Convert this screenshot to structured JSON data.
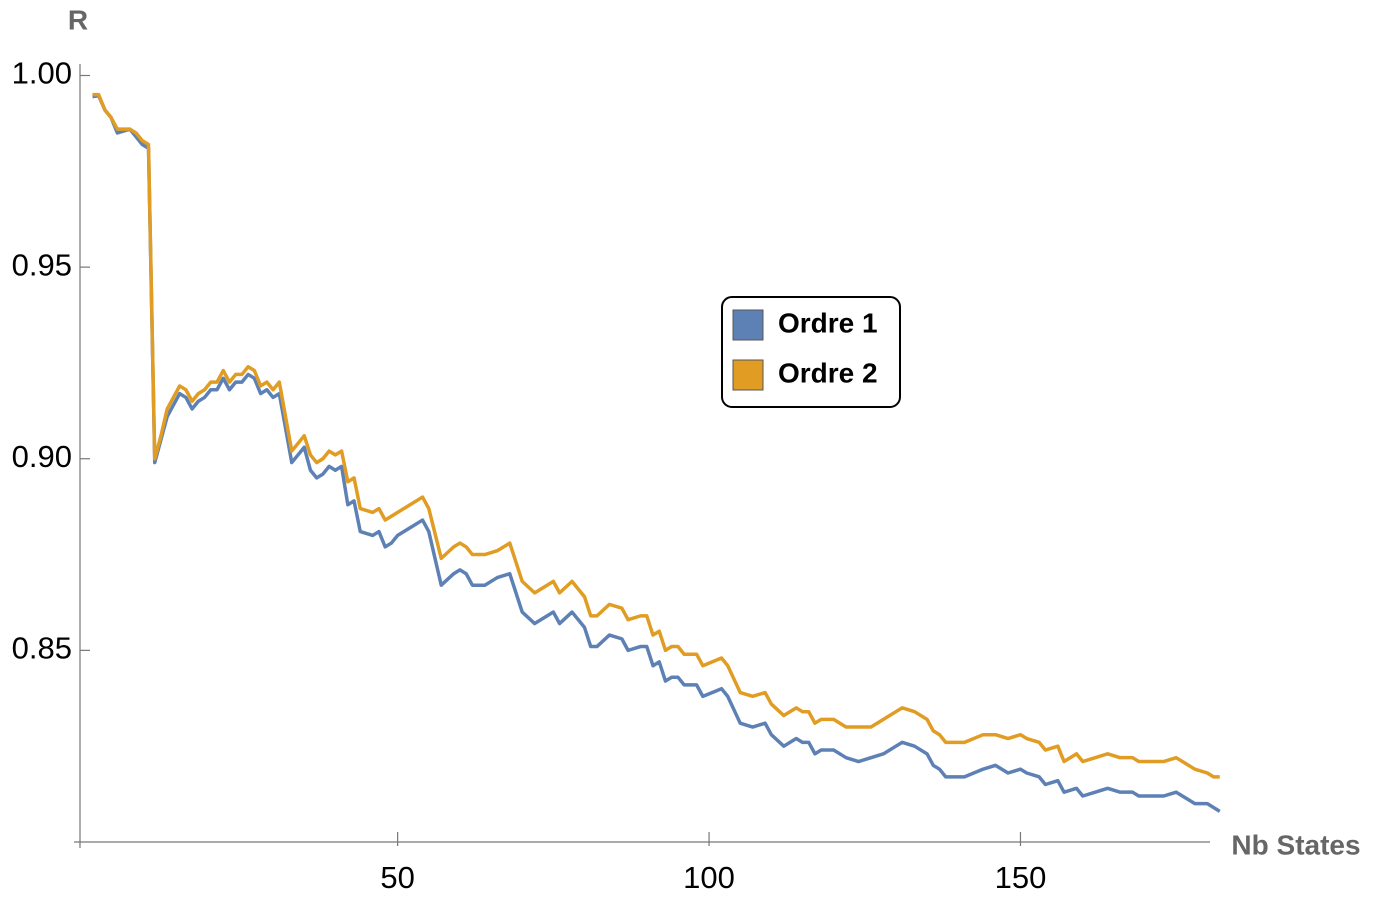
{
  "chart_data": {
    "type": "line",
    "x_label": "Nb States",
    "y_label": "R",
    "x": [
      1,
      2,
      3,
      4,
      5,
      6,
      7,
      8,
      9,
      10,
      11,
      12,
      13,
      15,
      16,
      17,
      18,
      19,
      20,
      21,
      22,
      23,
      24,
      25,
      26,
      27,
      28,
      29,
      30,
      31,
      33,
      34,
      35,
      36,
      37,
      38,
      39,
      40,
      41,
      42,
      43,
      44,
      46,
      47,
      48,
      49,
      50,
      52,
      54,
      55,
      57,
      59,
      60,
      61,
      62,
      64,
      66,
      68,
      70,
      72,
      74,
      75,
      76,
      78,
      80,
      81,
      82,
      84,
      86,
      87,
      89,
      90,
      91,
      92,
      93,
      94,
      95,
      96,
      98,
      99,
      102,
      103,
      105,
      107,
      109,
      110,
      112,
      114,
      115,
      116,
      117,
      118,
      120,
      122,
      124,
      126,
      128,
      130,
      131,
      133,
      135,
      136,
      137,
      138,
      141,
      144,
      146,
      148,
      150,
      151,
      153,
      154,
      156,
      157,
      159,
      160,
      162,
      164,
      166,
      168,
      169,
      171,
      173,
      175,
      176,
      178,
      180,
      181,
      182
    ],
    "series": [
      {
        "name": "Ordre 1",
        "color": "#5e81b5",
        "values": [
          0.9945,
          0.9947,
          0.991,
          0.989,
          0.985,
          0.9855,
          0.986,
          0.984,
          0.982,
          0.981,
          0.899,
          0.905,
          0.911,
          0.917,
          0.916,
          0.913,
          0.915,
          0.916,
          0.918,
          0.918,
          0.921,
          0.918,
          0.92,
          0.92,
          0.922,
          0.921,
          0.917,
          0.918,
          0.916,
          0.917,
          0.899,
          0.901,
          0.903,
          0.897,
          0.895,
          0.896,
          0.898,
          0.897,
          0.898,
          0.888,
          0.889,
          0.881,
          0.88,
          0.881,
          0.877,
          0.878,
          0.88,
          0.882,
          0.884,
          0.881,
          0.867,
          0.87,
          0.871,
          0.87,
          0.867,
          0.867,
          0.869,
          0.87,
          0.86,
          0.857,
          0.859,
          0.86,
          0.857,
          0.86,
          0.856,
          0.851,
          0.851,
          0.854,
          0.853,
          0.85,
          0.851,
          0.851,
          0.846,
          0.847,
          0.842,
          0.843,
          0.843,
          0.841,
          0.841,
          0.838,
          0.84,
          0.838,
          0.831,
          0.83,
          0.831,
          0.828,
          0.825,
          0.827,
          0.826,
          0.826,
          0.823,
          0.824,
          0.824,
          0.822,
          0.821,
          0.822,
          0.823,
          0.825,
          0.826,
          0.825,
          0.823,
          0.82,
          0.819,
          0.817,
          0.817,
          0.819,
          0.82,
          0.818,
          0.819,
          0.818,
          0.817,
          0.815,
          0.816,
          0.813,
          0.814,
          0.812,
          0.813,
          0.814,
          0.813,
          0.813,
          0.812,
          0.812,
          0.812,
          0.813,
          0.812,
          0.81,
          0.81,
          0.809,
          0.808
        ]
      },
      {
        "name": "Ordre 2",
        "color": "#e19c24",
        "values": [
          0.995,
          0.995,
          0.991,
          0.989,
          0.986,
          0.986,
          0.986,
          0.985,
          0.983,
          0.982,
          0.9,
          0.906,
          0.913,
          0.919,
          0.918,
          0.915,
          0.917,
          0.918,
          0.92,
          0.92,
          0.923,
          0.92,
          0.922,
          0.922,
          0.924,
          0.923,
          0.919,
          0.92,
          0.918,
          0.92,
          0.902,
          0.904,
          0.906,
          0.901,
          0.899,
          0.9,
          0.902,
          0.901,
          0.902,
          0.894,
          0.895,
          0.887,
          0.886,
          0.887,
          0.884,
          0.885,
          0.886,
          0.888,
          0.89,
          0.887,
          0.874,
          0.877,
          0.878,
          0.877,
          0.875,
          0.875,
          0.876,
          0.878,
          0.868,
          0.865,
          0.867,
          0.868,
          0.865,
          0.868,
          0.864,
          0.859,
          0.859,
          0.862,
          0.861,
          0.858,
          0.859,
          0.859,
          0.854,
          0.855,
          0.85,
          0.851,
          0.851,
          0.849,
          0.849,
          0.846,
          0.848,
          0.846,
          0.839,
          0.838,
          0.839,
          0.836,
          0.833,
          0.835,
          0.834,
          0.834,
          0.831,
          0.832,
          0.832,
          0.83,
          0.83,
          0.83,
          0.832,
          0.834,
          0.835,
          0.834,
          0.832,
          0.829,
          0.828,
          0.826,
          0.826,
          0.828,
          0.828,
          0.827,
          0.828,
          0.827,
          0.826,
          0.824,
          0.825,
          0.821,
          0.823,
          0.821,
          0.822,
          0.823,
          0.822,
          0.822,
          0.821,
          0.821,
          0.821,
          0.822,
          0.821,
          0.819,
          0.818,
          0.817,
          0.817
        ]
      }
    ],
    "xlim": [
      -1,
      183
    ],
    "ylim": [
      0.8,
      1.003
    ],
    "xticks": [
      50,
      100,
      150
    ],
    "yticks": [
      {
        "value": 0.85,
        "label": "0.85"
      },
      {
        "value": 0.9,
        "label": "0.90"
      },
      {
        "value": 0.95,
        "label": "0.95"
      },
      {
        "value": 1,
        "label": "1.00"
      }
    ],
    "legend": "center"
  }
}
